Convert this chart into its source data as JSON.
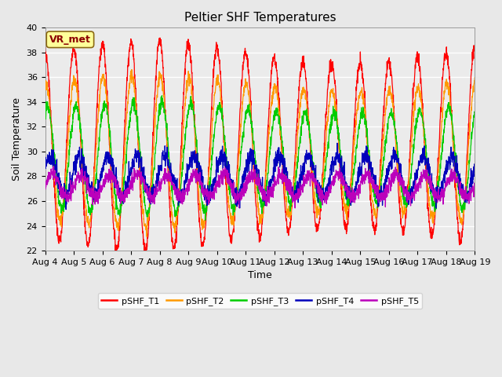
{
  "title": "Peltier SHF Temperatures",
  "xlabel": "Time",
  "ylabel": "Soil Temperature",
  "ylim": [
    22,
    40
  ],
  "annotation": "VR_met",
  "bg_color": "#e8e8e8",
  "plot_bg_color": "#ebebeb",
  "grid_color": "#ffffff",
  "legend_labels": [
    "pSHF_T1",
    "pSHF_T2",
    "pSHF_T3",
    "pSHF_T4",
    "pSHF_T5"
  ],
  "legend_colors": [
    "#ff0000",
    "#ff9900",
    "#00cc00",
    "#0000bb",
    "#bb00bb"
  ],
  "xtick_labels": [
    "Aug 4",
    "Aug 5",
    "Aug 6",
    "Aug 7",
    "Aug 8",
    "Aug 9",
    "Aug 10",
    "Aug 11",
    "Aug 12",
    "Aug 13",
    "Aug 14",
    "Aug 15",
    "Aug 16",
    "Aug 17",
    "Aug 18",
    "Aug 19"
  ],
  "ytick_values": [
    22,
    24,
    26,
    28,
    30,
    32,
    34,
    36,
    38,
    40
  ],
  "title_fontsize": 11,
  "axis_label_fontsize": 9,
  "tick_fontsize": 8,
  "legend_fontsize": 8,
  "annotation_fontsize": 9
}
